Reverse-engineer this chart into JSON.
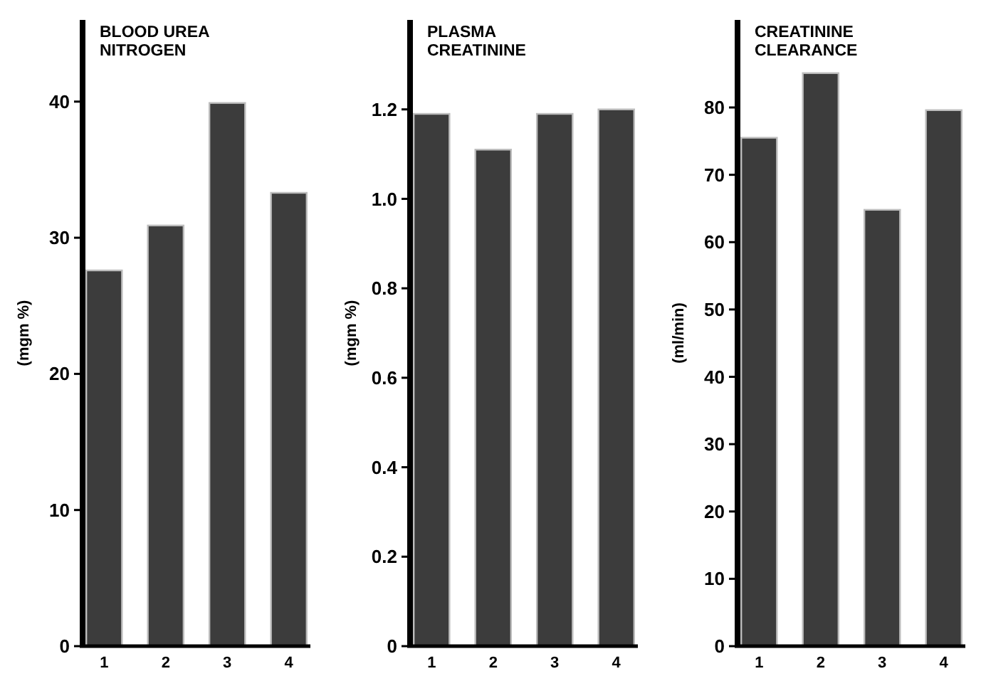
{
  "chart_data": [
    {
      "type": "bar",
      "title": "BLOOD UREA NITROGEN",
      "ylabel": "(mgm %)",
      "categories": [
        "1",
        "2",
        "3",
        "4"
      ],
      "values": [
        27.6,
        30.9,
        39.9,
        33.3
      ],
      "color": "#3c3c3c",
      "ylim": [
        0,
        46
      ],
      "yticks": [
        0,
        10,
        20,
        30,
        40
      ]
    },
    {
      "type": "bar",
      "title": "PLASMA CREATININE",
      "ylabel": "(mgm %)",
      "categories": [
        "1",
        "2",
        "3",
        "4"
      ],
      "values": [
        1.19,
        1.11,
        1.19,
        1.2
      ],
      "color": "#3c3c3c",
      "ylim": [
        0,
        1.4
      ],
      "yticks": [
        0,
        0.2,
        0.4,
        0.6,
        0.8,
        {
          "value": 1,
          "label": "1.0"
        },
        1.2
      ]
    },
    {
      "type": "bar",
      "title": "CREATININE CLEARANCE",
      "ylabel": "(ml/min)",
      "categories": [
        "1",
        "2",
        "3",
        "4"
      ],
      "values": [
        75.5,
        85.1,
        64.8,
        79.6
      ],
      "color": "#3c3c3c",
      "ylim": [
        0,
        93
      ],
      "yticks": [
        0,
        10,
        20,
        30,
        40,
        50,
        60,
        70,
        80
      ]
    }
  ]
}
